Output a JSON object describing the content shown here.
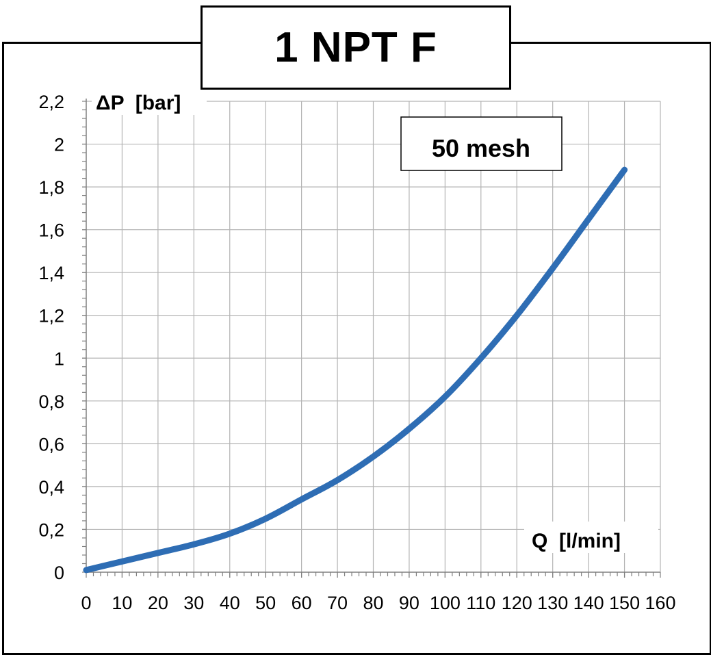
{
  "title": "1 NPT F",
  "chart_data": {
    "type": "line",
    "ylabel": "ΔP  [bar]",
    "xlabel": "Q  [l/min]",
    "annotation": "50 mesh",
    "xlim": [
      0,
      160
    ],
    "ylim": [
      0,
      2.2
    ],
    "x_ticks": [
      "0",
      "10",
      "20",
      "30",
      "40",
      "50",
      "60",
      "70",
      "80",
      "90",
      "100",
      "110",
      "120",
      "130",
      "140",
      "150",
      "160"
    ],
    "y_ticks": [
      "0",
      "0,2",
      "0,4",
      "0,6",
      "0,8",
      "1",
      "1,2",
      "1,4",
      "1,6",
      "1,8",
      "2",
      "2,2"
    ],
    "grid": true,
    "line_color": "#2E6DB4",
    "series": [
      {
        "x": [
          0,
          10,
          20,
          30,
          40,
          50,
          60,
          70,
          80,
          90,
          100,
          110,
          120,
          130,
          140,
          150
        ],
        "y": [
          0.01,
          0.05,
          0.09,
          0.13,
          0.18,
          0.25,
          0.34,
          0.43,
          0.54,
          0.67,
          0.82,
          1.0,
          1.2,
          1.42,
          1.65,
          1.88
        ]
      }
    ]
  }
}
